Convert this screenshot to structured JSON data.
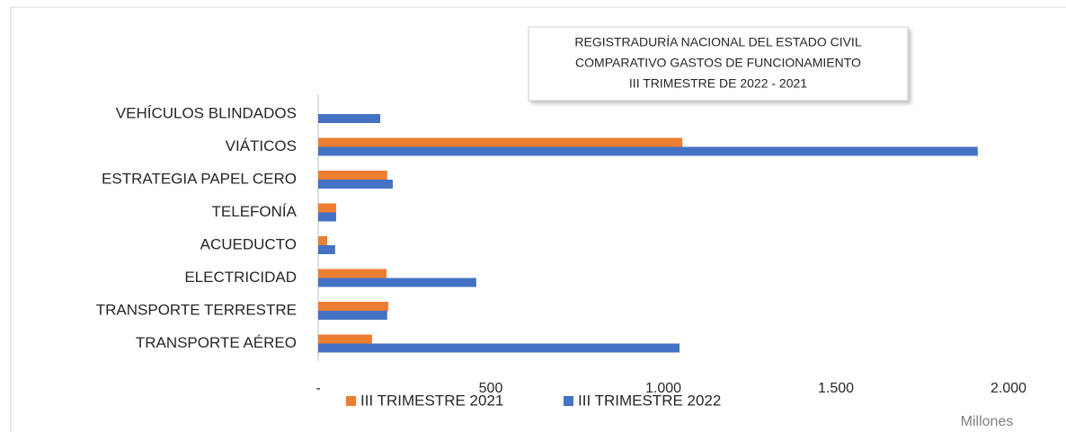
{
  "chart_data": {
    "type": "hbar",
    "title": [
      "REGISTRADURÍA NACIONAL DEL ESTADO CIVIL",
      "COMPARATIVO GASTOS DE FUNCIONAMIENTO",
      "III TRIMESTRE DE 2022 - 2021"
    ],
    "categories": [
      "VEHÍCULOS BLINDADOS",
      "VIÁTICOS",
      "ESTRATEGIA PAPEL CERO",
      "TELEFONÍA",
      "ACUEDUCTO",
      "ELECTRICIDAD",
      "TRANSPORTE TERRESTRE",
      "TRANSPORTE AÉREO"
    ],
    "series": [
      {
        "name": "III TRIMESTRE 2021",
        "color": "#ed7d31",
        "values": [
          0,
          1055,
          200,
          52,
          26,
          198,
          203,
          156
        ]
      },
      {
        "name": "III TRIMESTRE 2022",
        "color": "#4472c4",
        "values": [
          180,
          1911,
          216,
          52,
          49,
          458,
          200,
          1047
        ]
      }
    ],
    "xlim": [
      0,
      2000
    ],
    "xticks": [
      {
        "value": 0,
        "label": "-"
      },
      500,
      {
        "value": 1000,
        "label": "1.000"
      },
      {
        "value": 1500,
        "label": "1.500"
      },
      {
        "value": 2000,
        "label": "2.000"
      }
    ],
    "xlabel": "Millones",
    "grid": false,
    "legend": "bottom"
  }
}
